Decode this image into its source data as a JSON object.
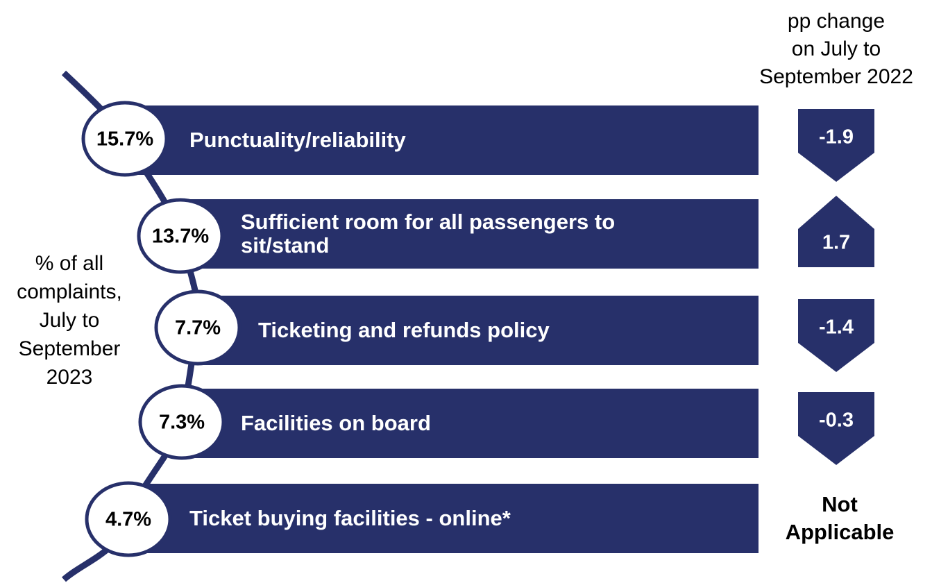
{
  "header": {
    "lines": [
      "pp change",
      "on July to",
      "September 2022"
    ]
  },
  "side_label": {
    "lines": [
      "% of all",
      "complaints,",
      "July to",
      "September",
      "2023"
    ]
  },
  "items": [
    {
      "share": "15.7%",
      "label": [
        "Punctuality/reliability"
      ],
      "change": [
        "-1.9"
      ]
    },
    {
      "share": "13.7%",
      "label": [
        "Sufficient room for all passengers to",
        "sit/stand"
      ],
      "change": [
        "1.7"
      ]
    },
    {
      "share": "7.7%",
      "label": [
        "Ticketing and refunds policy"
      ],
      "change": [
        "-1.4"
      ]
    },
    {
      "share": "7.3%",
      "label": [
        "Facilities on board"
      ],
      "change": [
        "-0.3"
      ]
    },
    {
      "share": "4.7%",
      "label": [
        "Ticket buying facilities - online*"
      ],
      "change": [
        "Not",
        "Applicable"
      ]
    }
  ]
}
